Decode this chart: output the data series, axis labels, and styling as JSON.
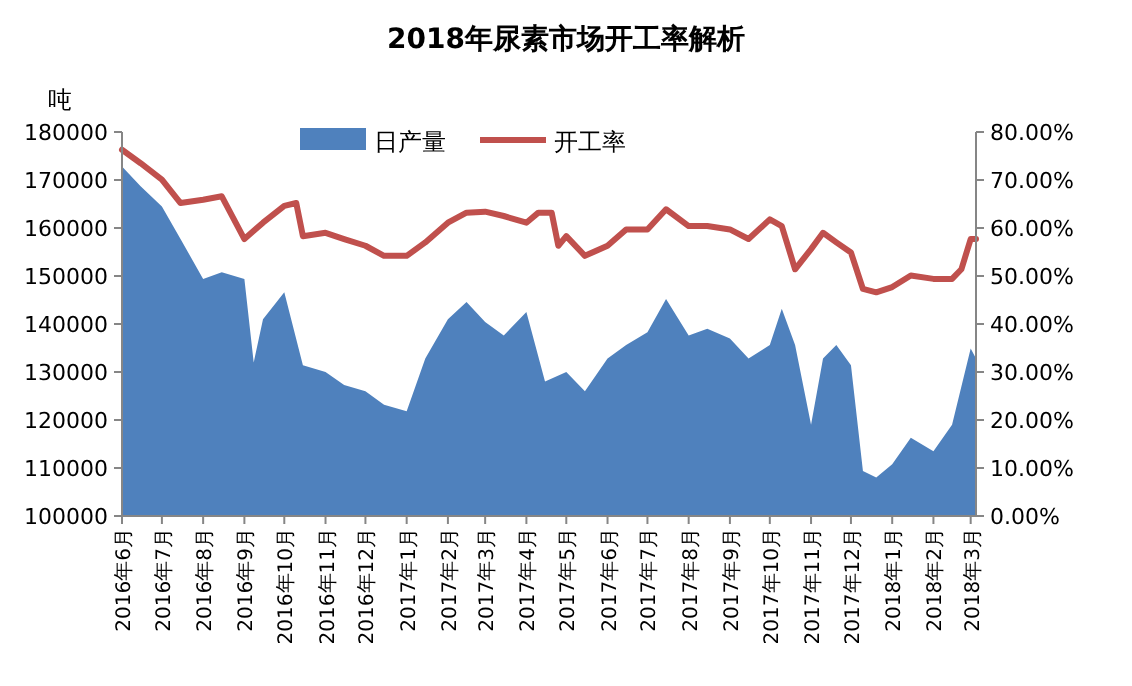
{
  "chart_data": {
    "type": "area",
    "title": "2018年尿素市场开工率解析",
    "ylabel": "吨",
    "legend": "top",
    "grid": false,
    "xlim": [
      "2016-06-01",
      "2018-03-05"
    ],
    "xticks": [
      {
        "value": "2016-06",
        "label": "2016年6月"
      },
      {
        "value": "2016-07",
        "label": "2016年7月"
      },
      {
        "value": "2016-08",
        "label": "2016年8月"
      },
      {
        "value": "2016-09",
        "label": "2016年9月"
      },
      {
        "value": "2016-10",
        "label": "2016年10月"
      },
      {
        "value": "2016-11",
        "label": "2016年11月"
      },
      {
        "value": "2016-12",
        "label": "2016年12月"
      },
      {
        "value": "2017-01",
        "label": "2017年1月"
      },
      {
        "value": "2017-02",
        "label": "2017年2月"
      },
      {
        "value": "2017-03",
        "label": "2017年3月"
      },
      {
        "value": "2017-04",
        "label": "2017年4月"
      },
      {
        "value": "2017-05",
        "label": "2017年5月"
      },
      {
        "value": "2017-06",
        "label": "2017年6月"
      },
      {
        "value": "2017-07",
        "label": "2017年7月"
      },
      {
        "value": "2017-08",
        "label": "2017年8月"
      },
      {
        "value": "2017-09",
        "label": "2017年9月"
      },
      {
        "value": "2017-10",
        "label": "2017年10月"
      },
      {
        "value": "2017-11",
        "label": "2017年11月"
      },
      {
        "value": "2017-12",
        "label": "2017年12月"
      },
      {
        "value": "2018-01",
        "label": "2018年1月"
      },
      {
        "value": "2018-02",
        "label": "2018年2月"
      },
      {
        "value": "2018-03",
        "label": "2018年3月"
      }
    ],
    "ylim": [
      100000,
      180000
    ],
    "yticks": [
      100000,
      110000,
      120000,
      130000,
      140000,
      150000,
      160000,
      170000,
      180000
    ],
    "y2lim": [
      0,
      80
    ],
    "y2ticks": [
      {
        "value": 0,
        "label": "0.00%"
      },
      {
        "value": 10,
        "label": "10.00%"
      },
      {
        "value": 20,
        "label": "20.00%"
      },
      {
        "value": 30,
        "label": "30.00%"
      },
      {
        "value": 40,
        "label": "40.00%"
      },
      {
        "value": 50,
        "label": "50.00%"
      },
      {
        "value": 60,
        "label": "60.00%"
      },
      {
        "value": 70,
        "label": "70.00%"
      },
      {
        "value": 80,
        "label": "80.00%"
      }
    ],
    "series": [
      {
        "name": "日产量",
        "type": "area",
        "color": "#4f81bd",
        "x": [
          "2016-06-01",
          "2016-06-15",
          "2016-07-01",
          "2016-07-15",
          "2016-08-01",
          "2016-08-15",
          "2016-09-01",
          "2016-09-08",
          "2016-09-15",
          "2016-10-01",
          "2016-10-15",
          "2016-11-01",
          "2016-11-15",
          "2016-12-01",
          "2016-12-15",
          "2017-01-01",
          "2017-01-15",
          "2017-02-01",
          "2017-02-15",
          "2017-03-01",
          "2017-03-15",
          "2017-04-01",
          "2017-04-15",
          "2017-05-01",
          "2017-05-15",
          "2017-06-01",
          "2017-06-15",
          "2017-07-01",
          "2017-07-15",
          "2017-08-01",
          "2017-08-15",
          "2017-09-01",
          "2017-09-15",
          "2017-10-01",
          "2017-10-10",
          "2017-10-20",
          "2017-11-01",
          "2017-11-10",
          "2017-11-20",
          "2017-12-01",
          "2017-12-10",
          "2017-12-20",
          "2018-01-01",
          "2018-01-15",
          "2018-02-01",
          "2018-02-15",
          "2018-03-01",
          "2018-03-05"
        ],
        "values": [
          172800,
          168700,
          164500,
          157700,
          149400,
          150800,
          149400,
          132000,
          141000,
          146600,
          131400,
          130000,
          127300,
          126000,
          123200,
          121800,
          132800,
          141000,
          144600,
          140400,
          137600,
          142500,
          128000,
          130000,
          126000,
          132800,
          135600,
          138300,
          145200,
          137600,
          139000,
          137000,
          132800,
          135600,
          143200,
          135600,
          119000,
          132800,
          135600,
          131400,
          109400,
          108000,
          110800,
          116300,
          113500,
          119000,
          134900,
          132800
        ]
      },
      {
        "name": "开工率",
        "type": "line",
        "axis": "y2",
        "color": "#c0504d",
        "x": [
          "2016-06-01",
          "2016-06-15",
          "2016-07-01",
          "2016-07-15",
          "2016-08-01",
          "2016-08-15",
          "2016-09-01",
          "2016-09-15",
          "2016-10-01",
          "2016-10-10",
          "2016-10-15",
          "2016-11-01",
          "2016-11-15",
          "2016-12-01",
          "2016-12-15",
          "2017-01-01",
          "2017-01-15",
          "2017-02-01",
          "2017-02-15",
          "2017-03-01",
          "2017-03-15",
          "2017-04-01",
          "2017-04-10",
          "2017-04-20",
          "2017-04-25",
          "2017-05-01",
          "2017-05-15",
          "2017-06-01",
          "2017-06-15",
          "2017-07-01",
          "2017-07-15",
          "2017-08-01",
          "2017-08-15",
          "2017-09-01",
          "2017-09-15",
          "2017-10-01",
          "2017-10-10",
          "2017-10-20",
          "2017-11-01",
          "2017-11-10",
          "2017-11-20",
          "2017-12-01",
          "2017-12-10",
          "2017-12-20",
          "2018-01-01",
          "2018-01-15",
          "2018-02-01",
          "2018-02-15",
          "2018-02-22",
          "2018-03-01",
          "2018-03-05"
        ],
        "values": [
          76.3,
          73.5,
          70.1,
          65.2,
          65.9,
          66.6,
          57.7,
          61.1,
          64.6,
          65.2,
          58.3,
          59.0,
          57.7,
          56.3,
          54.2,
          54.2,
          57.0,
          61.1,
          63.2,
          63.4,
          62.5,
          61.1,
          63.2,
          63.2,
          56.3,
          58.3,
          54.2,
          56.3,
          59.7,
          59.7,
          63.9,
          60.4,
          60.4,
          59.7,
          57.7,
          61.8,
          60.4,
          51.4,
          55.6,
          59.0,
          57.0,
          54.9,
          47.3,
          46.6,
          47.7,
          50.1,
          49.4,
          49.4,
          51.4,
          57.7,
          57.7
        ]
      }
    ]
  }
}
